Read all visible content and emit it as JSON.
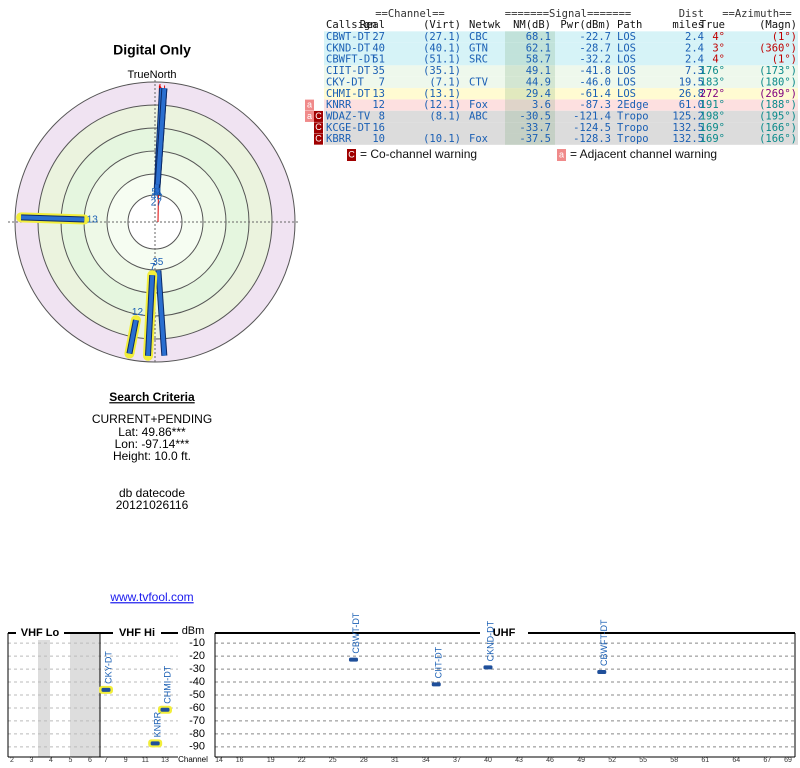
{
  "polar": {
    "title": "Digital Only",
    "north_label": "TrueNorth",
    "north_mark": "N"
  },
  "search": {
    "title": "Search Criteria",
    "lines": [
      "CURRENT+PENDING",
      "Lat: 49.86***",
      "Lon: -97.14***",
      "Height: 10.0 ft."
    ],
    "datecode_label": "db datecode",
    "datecode": "20121026116",
    "link": "www.tvfool.com"
  },
  "table": {
    "group_headers": [
      "==Channel==",
      "=======Signal=======",
      "Dist",
      "==Azimuth=="
    ],
    "headers": [
      "Callsign",
      "Real",
      "(Virt)",
      "Netwk",
      "NM(dB)",
      "Pwr(dBm)",
      "Path",
      "miles",
      "True",
      "(Magn)"
    ],
    "rows": [
      {
        "callsign": "CBWT-DT",
        "real": 27,
        "virt": "(27.1)",
        "netwk": "CBC",
        "nm": 68.1,
        "pwr": -22.7,
        "path": "LOS",
        "dist": 2.4,
        "az_true": "4°",
        "az_magn": "(1°)"
      },
      {
        "callsign": "CKND-DT",
        "real": 40,
        "virt": "(40.1)",
        "netwk": "GTN",
        "nm": 62.1,
        "pwr": -28.7,
        "path": "LOS",
        "dist": 2.4,
        "az_true": "3°",
        "az_magn": "(360°)"
      },
      {
        "callsign": "CBWFT-DT",
        "real": 51,
        "virt": "(51.1)",
        "netwk": "SRC",
        "nm": 58.7,
        "pwr": -32.2,
        "path": "LOS",
        "dist": 2.4,
        "az_true": "4°",
        "az_magn": "(1°)"
      },
      {
        "callsign": "CIIT-DT",
        "real": 35,
        "virt": "(35.1)",
        "nm": 49.1,
        "pwr": -41.8,
        "path": "LOS",
        "dist": 7.3,
        "az_true": "176°",
        "az_magn": "(173°)"
      },
      {
        "callsign": "CKY-DT",
        "real": 7,
        "virt": "(7.1)",
        "netwk": "CTV",
        "nm": 44.9,
        "pwr": {
          "value": -46,
          "label": "-46.0"
        },
        "path": "LOS",
        "dist": 19.5,
        "az_true": "183°",
        "az_magn": "(180°)"
      },
      {
        "callsign": "CHMI-DT",
        "real": 13,
        "virt": "(13.1)",
        "nm": 29.4,
        "pwr": -61.4,
        "path": "LOS",
        "dist": 26.8,
        "az_true": "272°",
        "az_magn": "(269°)"
      },
      {
        "warnings": [
          "a"
        ],
        "callsign": "KNRR",
        "real": 12,
        "virt": "(12.1)",
        "netwk": "Fox",
        "nm": 3.6,
        "pwr": -87.3,
        "path": "2Edge",
        "dist": {
          "value": 61,
          "label": "61.0"
        },
        "az_true": "191°",
        "az_magn": "(188°)"
      },
      {
        "warnings": [
          "a",
          "C"
        ],
        "callsign": "WDAZ-TV",
        "real": 8,
        "virt": "(8.1)",
        "netwk": "ABC",
        "nm": -30.5,
        "pwr": -121.4,
        "path": "Tropo",
        "dist": 125.2,
        "az_true": "198°",
        "az_magn": "(195°)"
      },
      {
        "warnings": [
          "C"
        ],
        "callsign": "KCGE-DT",
        "real": 16,
        "nm": -33.7,
        "pwr": -124.5,
        "path": "Tropo",
        "dist": 132.5,
        "az_true": "169°",
        "az_magn": "(166°)"
      },
      {
        "warnings": [
          "C"
        ],
        "callsign": "KBRR",
        "real": 10,
        "virt": "(10.1)",
        "netwk": "Fox",
        "nm": -37.5,
        "pwr": -128.3,
        "path": "Tropo",
        "dist": 132.5,
        "az_true": "169°",
        "az_magn": "(166°)"
      }
    ]
  },
  "legend": [
    {
      "icon": "C",
      "text": "= Co-channel warning"
    },
    {
      "icon": "a",
      "text": "= Adjacent channel warning"
    }
  ],
  "spectrum": {
    "y_label": "dBm",
    "x_label": "Channel",
    "ylim": [
      -6,
      -94
    ],
    "yticks": [
      -10,
      -20,
      -30,
      -40,
      -50,
      -60,
      -70,
      -80,
      -90
    ],
    "sections": [
      {
        "title": "VHF Lo",
        "channels": [
          2,
          3,
          4,
          5,
          6
        ]
      },
      {
        "title": "VHF Hi",
        "channels": [
          7,
          9,
          11,
          13
        ]
      },
      {
        "title": "UHF",
        "channels": [
          14,
          16,
          19,
          22,
          25,
          28,
          31,
          34,
          37,
          40,
          43,
          46,
          49,
          52,
          55,
          58,
          61,
          64,
          67,
          69
        ]
      }
    ]
  }
}
